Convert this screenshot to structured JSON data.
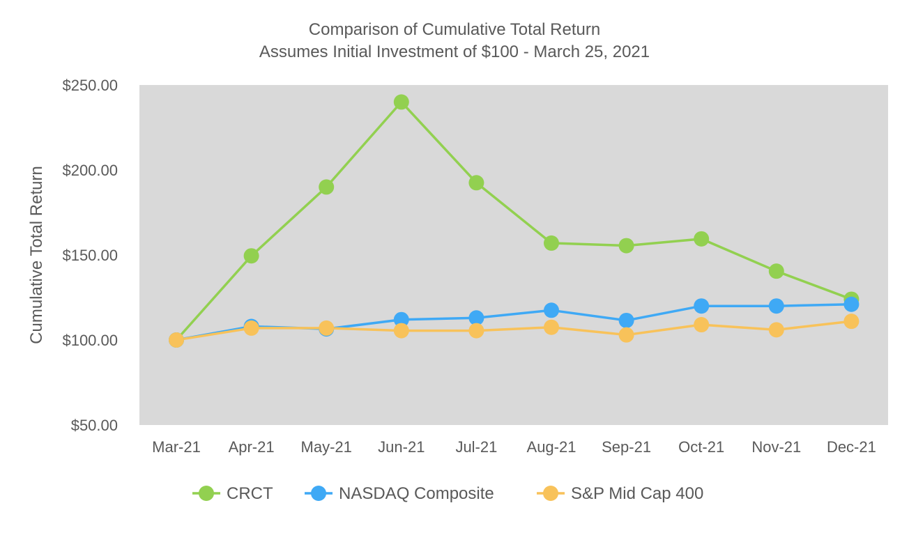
{
  "chart_data": {
    "type": "line",
    "title": "Comparison of Cumulative Total Return",
    "subtitle": "Assumes Initial Investment of $100 - March 25, 2021",
    "xlabel": "",
    "ylabel": "Cumulative Total Return",
    "categories": [
      "Mar-21",
      "Apr-21",
      "May-21",
      "Jun-21",
      "Jul-21",
      "Aug-21",
      "Sep-21",
      "Oct-21",
      "Nov-21",
      "Dec-21"
    ],
    "ylim": [
      50,
      250
    ],
    "yticks": [
      50,
      100,
      150,
      200,
      250
    ],
    "ytick_labels": [
      "$50.00",
      "$100.00",
      "$150.00",
      "$200.00",
      "$250.00"
    ],
    "grid": false,
    "plot_background": "#d9d9d9",
    "legend_position": "bottom",
    "series": [
      {
        "name": "CRCT",
        "color": "#92d050",
        "values": [
          100,
          149.5,
          190,
          240,
          192.5,
          157,
          155.5,
          159.5,
          140.5,
          124
        ]
      },
      {
        "name": "NASDAQ Composite",
        "color": "#3fa9f5",
        "values": [
          100,
          108,
          106.5,
          112,
          113,
          117.5,
          111.5,
          120,
          120,
          121
        ]
      },
      {
        "name": "S&P Mid Cap 400",
        "color": "#f8c25a",
        "values": [
          100,
          107,
          107,
          105.5,
          105.5,
          107.5,
          103,
          109,
          106,
          111
        ]
      }
    ]
  }
}
